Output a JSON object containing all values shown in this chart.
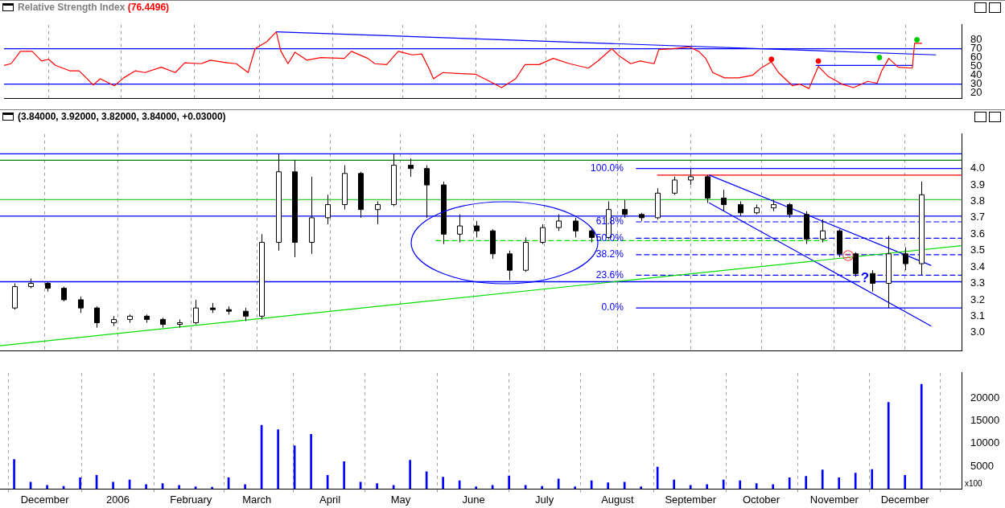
{
  "chart_data": [
    {
      "type": "line",
      "title": "Relative Strength Index",
      "subtitle": "(76.4496)",
      "xlim": [
        "2005-11-12",
        "2006-12-25"
      ],
      "xticks": [
        {
          "value": "2005-12-01",
          "label": null
        },
        {
          "value": "2006",
          "label": null
        },
        {
          "value": "2006-02-01",
          "label": null
        },
        {
          "value": "2006-03-01",
          "label": null
        },
        {
          "value": "2006-04-01",
          "label": null
        },
        {
          "value": "2006-05-01",
          "label": null
        },
        {
          "value": "2006-06-01",
          "label": null
        },
        {
          "value": "2006-07-01",
          "label": null
        },
        {
          "value": "2006-08-01",
          "label": null
        },
        {
          "value": "2006-09-01",
          "label": null
        },
        {
          "value": "2006-10-01",
          "label": null
        },
        {
          "value": "2006-11-01",
          "label": null
        },
        {
          "value": "2006-12-01",
          "label": null
        }
      ],
      "ylim": [
        14,
        97
      ],
      "yticks": [
        20,
        30,
        40,
        50,
        60,
        70,
        80
      ],
      "tick_labels": "y",
      "grid": "x",
      "ref_lines": [
        {
          "axis": "y",
          "value": 70,
          "color": "#0000ff"
        },
        {
          "axis": "y",
          "value": 30,
          "color": "#0000ff"
        }
      ],
      "series": [
        {
          "color": "#ff0000",
          "x": [
            "2005-11-12",
            "2005-11-15",
            "2005-11-19",
            "2005-11-24",
            "2005-11-28",
            "2005-12-01",
            "2005-12-04",
            "2005-12-10",
            "2005-12-14",
            "2005-12-20",
            "2005-12-23",
            "2005-12-29",
            "2006-01-02",
            "2006-01-07",
            "2006-01-11",
            "2006-01-18",
            "2006-01-24",
            "2006-01-28",
            "2006-02-04",
            "2006-02-08",
            "2006-02-15",
            "2006-02-19",
            "2006-02-24",
            "2006-02-27",
            "2006-03-04",
            "2006-03-08",
            "2006-03-10",
            "2006-03-13",
            "2006-03-16",
            "2006-03-21",
            "2006-03-27",
            "2006-04-06",
            "2006-04-09",
            "2006-04-16",
            "2006-04-19",
            "2006-04-24",
            "2006-04-29",
            "2006-05-05",
            "2006-05-09",
            "2006-05-12",
            "2006-05-14",
            "2006-05-18",
            "2006-05-24",
            "2006-06-01",
            "2006-06-07",
            "2006-06-12",
            "2006-06-18",
            "2006-06-22",
            "2006-06-28",
            "2006-07-04",
            "2006-07-11",
            "2006-07-19",
            "2006-07-23",
            "2006-07-29",
            "2006-08-01",
            "2006-08-06",
            "2006-08-10",
            "2006-08-16",
            "2006-08-18",
            "2006-08-24",
            "2006-08-31",
            "2006-09-04",
            "2006-09-07",
            "2006-09-10",
            "2006-09-15",
            "2006-09-21",
            "2006-09-27",
            "2006-10-01",
            "2006-10-05",
            "2006-10-08",
            "2006-10-14",
            "2006-10-17",
            "2006-10-21",
            "2006-10-25",
            "2006-10-29",
            "2006-11-04",
            "2006-11-09",
            "2006-11-15",
            "2006-11-19",
            "2006-11-21",
            "2006-11-24",
            "2006-11-28",
            "2006-12-04",
            "2006-12-05",
            "2006-12-08"
          ],
          "values": [
            51,
            53,
            67,
            67,
            56,
            58,
            51,
            45,
            45,
            29,
            36,
            28,
            37,
            45,
            43,
            49,
            43,
            54,
            53,
            57,
            54,
            53,
            43,
            70,
            78,
            89,
            67,
            53,
            66,
            57,
            60,
            59,
            67,
            59,
            53,
            52,
            67,
            63,
            64,
            48,
            36,
            43,
            42,
            41,
            33,
            26,
            36,
            52,
            52,
            59,
            53,
            48,
            56,
            70,
            62,
            53,
            56,
            53,
            69,
            70,
            72,
            67,
            59,
            43,
            37,
            37,
            40,
            49,
            55,
            43,
            28,
            30,
            25,
            50,
            39,
            30,
            26,
            33,
            31,
            45,
            59,
            49,
            48,
            76,
            76
          ]
        },
        {
          "type": "line",
          "color": "#0000ff",
          "x": [
            "2006-03-08",
            "2006-12-14"
          ],
          "values": [
            89,
            63
          ]
        },
        {
          "type": "line",
          "color": "#0000ff",
          "x": [
            "2006-10-24",
            "2006-12-04"
          ],
          "values": [
            51,
            51
          ]
        },
        {
          "type": "scatter",
          "marker": "circle",
          "color": "#ff0000",
          "x": [
            "2006-10-05",
            "2006-10-25"
          ],
          "values": [
            58,
            56
          ]
        },
        {
          "type": "scatter",
          "marker": "circle",
          "color": "#00cc00",
          "x": [
            "2006-11-20",
            "2006-12-06"
          ],
          "values": [
            60,
            80
          ]
        }
      ]
    },
    {
      "type": "candlestick",
      "title": "(3.84000, 3.92000, 3.82000, 3.84000, +0.03000)",
      "xlim": [
        "2005-11-12",
        "2006-12-25"
      ],
      "xticks": [
        {
          "value": "2005-12-01",
          "label": null
        },
        {
          "value": "2006",
          "label": null
        },
        {
          "value": "2006-02-01",
          "label": null
        },
        {
          "value": "2006-03-01",
          "label": null
        },
        {
          "value": "2006-04-01",
          "label": null
        },
        {
          "value": "2006-05-01",
          "label": null
        },
        {
          "value": "2006-06-01",
          "label": null
        },
        {
          "value": "2006-07-01",
          "label": null
        },
        {
          "value": "2006-08-01",
          "label": null
        },
        {
          "value": "2006-09-01",
          "label": null
        },
        {
          "value": "2006-10-01",
          "label": null
        },
        {
          "value": "2006-11-01",
          "label": null
        },
        {
          "value": "2006-12-01",
          "label": null
        }
      ],
      "ylim": [
        2.89,
        4.21
      ],
      "yticks": [
        {
          "value": 3,
          "label": "3.0"
        },
        3.1,
        3.2,
        3.3,
        3.4,
        3.5,
        3.6,
        3.7,
        3.8,
        3.9,
        {
          "value": 4,
          "label": "4.0"
        }
      ],
      "tick_labels": "y",
      "grid": "x",
      "marker": "none",
      "x": [
        "2005-11-18",
        "2005-11-25",
        "2005-12-02",
        "2005-12-09",
        "2005-12-16",
        "2005-12-23",
        "2005-12-30",
        "2006-01-06",
        "2006-01-13",
        "2006-01-20",
        "2006-01-27",
        "2006-02-03",
        "2006-02-10",
        "2006-02-17",
        "2006-02-24",
        "2006-03-03",
        "2006-03-10",
        "2006-03-17",
        "2006-03-24",
        "2006-03-31",
        "2006-04-07",
        "2006-04-14",
        "2006-04-21",
        "2006-04-28",
        "2006-05-05",
        "2006-05-12",
        "2006-05-19",
        "2006-05-26",
        "2006-06-02",
        "2006-06-09",
        "2006-06-16",
        "2006-06-23",
        "2006-06-30",
        "2006-07-07",
        "2006-07-14",
        "2006-07-21",
        "2006-07-28",
        "2006-08-04",
        "2006-08-11",
        "2006-08-18",
        "2006-08-25",
        "2006-09-01",
        "2006-09-08",
        "2006-09-15",
        "2006-09-22",
        "2006-09-29",
        "2006-10-06",
        "2006-10-13",
        "2006-10-20",
        "2006-10-27",
        "2006-11-03",
        "2006-11-10",
        "2006-11-17",
        "2006-11-24",
        "2006-12-01",
        "2006-12-08"
      ],
      "ohlc": [
        [
          3.15,
          3.3,
          3.14,
          3.28
        ],
        [
          3.28,
          3.33,
          3.27,
          3.3
        ],
        [
          3.3,
          3.31,
          3.25,
          3.27
        ],
        [
          3.27,
          3.28,
          3.19,
          3.2
        ],
        [
          3.2,
          3.22,
          3.12,
          3.15
        ],
        [
          3.15,
          3.16,
          3.03,
          3.06
        ],
        [
          3.06,
          3.1,
          3.04,
          3.08
        ],
        [
          3.08,
          3.11,
          3.06,
          3.1
        ],
        [
          3.1,
          3.11,
          3.06,
          3.08
        ],
        [
          3.08,
          3.09,
          3.03,
          3.05
        ],
        [
          3.05,
          3.08,
          3.03,
          3.06
        ],
        [
          3.06,
          3.2,
          3.05,
          3.15
        ],
        [
          3.15,
          3.18,
          3.12,
          3.14
        ],
        [
          3.14,
          3.16,
          3.11,
          3.13
        ],
        [
          3.13,
          3.15,
          3.07,
          3.1
        ],
        [
          3.1,
          3.6,
          3.08,
          3.55
        ],
        [
          3.55,
          4.09,
          3.5,
          3.98
        ],
        [
          3.98,
          4.05,
          3.46,
          3.55
        ],
        [
          3.55,
          3.95,
          3.48,
          3.7
        ],
        [
          3.7,
          3.84,
          3.66,
          3.78
        ],
        [
          3.78,
          4.02,
          3.75,
          3.97
        ],
        [
          3.97,
          3.98,
          3.7,
          3.75
        ],
        [
          3.75,
          3.8,
          3.66,
          3.78
        ],
        [
          3.78,
          4.09,
          3.77,
          4.02
        ],
        [
          4.02,
          4.06,
          3.95,
          4.0
        ],
        [
          4.0,
          4.02,
          3.7,
          3.9
        ],
        [
          3.9,
          3.92,
          3.54,
          3.6
        ],
        [
          3.6,
          3.72,
          3.55,
          3.65
        ],
        [
          3.65,
          3.68,
          3.58,
          3.62
        ],
        [
          3.62,
          3.63,
          3.45,
          3.48
        ],
        [
          3.48,
          3.5,
          3.32,
          3.38
        ],
        [
          3.38,
          3.58,
          3.37,
          3.55
        ],
        [
          3.55,
          3.66,
          3.54,
          3.64
        ],
        [
          3.64,
          3.72,
          3.62,
          3.68
        ],
        [
          3.68,
          3.7,
          3.58,
          3.62
        ],
        [
          3.62,
          3.63,
          3.55,
          3.58
        ],
        [
          3.58,
          3.8,
          3.57,
          3.75
        ],
        [
          3.75,
          3.81,
          3.7,
          3.72
        ],
        [
          3.72,
          3.73,
          3.68,
          3.7
        ],
        [
          3.7,
          3.88,
          3.69,
          3.85
        ],
        [
          3.85,
          3.95,
          3.84,
          3.93
        ],
        [
          3.93,
          4.0,
          3.9,
          3.95
        ],
        [
          3.95,
          3.96,
          3.79,
          3.82
        ],
        [
          3.82,
          3.87,
          3.74,
          3.78
        ],
        [
          3.78,
          3.8,
          3.71,
          3.73
        ],
        [
          3.73,
          3.78,
          3.72,
          3.76
        ],
        [
          3.76,
          3.81,
          3.74,
          3.78
        ],
        [
          3.78,
          3.79,
          3.7,
          3.72
        ],
        [
          3.72,
          3.74,
          3.54,
          3.57
        ],
        [
          3.57,
          3.69,
          3.55,
          3.62
        ],
        [
          3.62,
          3.63,
          3.46,
          3.48
        ],
        [
          3.48,
          3.49,
          3.34,
          3.36
        ],
        [
          3.36,
          3.38,
          3.25,
          3.3
        ],
        [
          3.3,
          3.59,
          3.15,
          3.48
        ],
        [
          3.48,
          3.52,
          3.38,
          3.42
        ],
        [
          3.42,
          3.92,
          3.35,
          3.84
        ]
      ],
      "ref_lines": [
        {
          "axis": "y",
          "value": 4.09,
          "color": "#0000ff"
        },
        {
          "axis": "y",
          "value": 4.05,
          "color": "#008000"
        },
        {
          "axis": "y",
          "value": 3.81,
          "color": "#33cc33"
        },
        {
          "axis": "y",
          "value": 3.71,
          "color": "#0000ff"
        },
        {
          "axis": "y",
          "value": 3.31,
          "color": "#0000ff"
        }
      ],
      "series": [
        {
          "type": "line",
          "color": "#00dd00",
          "x": [
            "2005-11-12",
            "2006-12-25"
          ],
          "values": [
            2.92,
            3.53
          ]
        },
        {
          "type": "line",
          "color": "#0000ff",
          "x": [
            "2006-09-09",
            "2006-12-12"
          ],
          "values": [
            3.96,
            3.41
          ]
        },
        {
          "type": "line",
          "color": "#0000ff",
          "x": [
            "2006-09-09",
            "2006-12-12"
          ],
          "values": [
            3.79,
            3.04
          ]
        },
        {
          "type": "line",
          "color": "#00dd00",
          "line_style": "dashed",
          "x": [
            "2006-05-16",
            "2006-10-29"
          ],
          "values": [
            3.56,
            3.56
          ]
        },
        {
          "type": "line",
          "color": "#ff0000",
          "x": [
            "2006-08-18",
            "2006-12-25"
          ],
          "values": [
            3.96,
            3.96
          ]
        },
        {
          "type": "line",
          "name": "100.0%",
          "color": "#0000ff",
          "x": [
            "2006-08-09",
            "2006-12-25"
          ],
          "values": [
            4.0,
            4.0
          ]
        },
        {
          "type": "line",
          "name": "61.8%",
          "color": "#0000ff",
          "line_style": "dashed",
          "x": [
            "2006-08-09",
            "2006-12-25"
          ],
          "values": [
            3.675,
            3.675
          ]
        },
        {
          "type": "line",
          "name": "50.0%",
          "color": "#0000ff",
          "line_style": "dashed",
          "x": [
            "2006-08-09",
            "2006-12-25"
          ],
          "values": [
            3.575,
            3.575
          ]
        },
        {
          "type": "line",
          "name": "38.2%",
          "color": "#0000ff",
          "line_style": "dashed",
          "x": [
            "2006-08-09",
            "2006-12-25"
          ],
          "values": [
            3.475,
            3.475
          ]
        },
        {
          "type": "line",
          "name": "23.6%",
          "color": "#0000ff",
          "line_style": "dashed",
          "x": [
            "2006-08-09",
            "2006-12-25"
          ],
          "values": [
            3.35,
            3.35
          ]
        },
        {
          "type": "line",
          "name": "0.0%",
          "color": "#0000ff",
          "x": [
            "2006-08-09",
            "2006-12-25"
          ],
          "values": [
            3.15,
            3.15
          ]
        }
      ],
      "annotations": [
        {
          "text": "?",
          "x": "2006-11-14",
          "y": 3.33
        }
      ]
    },
    {
      "type": "bar",
      "color": "#0000ff",
      "xlim": [
        "2005-11-12",
        "2006-12-25"
      ],
      "xticks": [
        {
          "value": "2005-12-01",
          "label": "December"
        },
        {
          "value": "2006",
          "label": "2006"
        },
        {
          "value": "2006-02-01",
          "label": "February"
        },
        {
          "value": "2006-03-01",
          "label": "March"
        },
        {
          "value": "2006-04-01",
          "label": "April"
        },
        {
          "value": "2006-05-01",
          "label": "May"
        },
        {
          "value": "2006-06-01",
          "label": "June"
        },
        {
          "value": "2006-07-01",
          "label": "July"
        },
        {
          "value": "2006-08-01",
          "label": "August"
        },
        {
          "value": "2006-09-01",
          "label": "September"
        },
        {
          "value": "2006-10-01",
          "label": "October"
        },
        {
          "value": "2006-11-01",
          "label": "November"
        },
        {
          "value": "2006-12-01",
          "label": "December"
        }
      ],
      "ylim": [
        0,
        25500
      ],
      "yticks": [
        5000,
        10000,
        15000,
        20000
      ],
      "grid": "x",
      "x": [
        "2005-11-18",
        "2005-11-25",
        "2005-12-02",
        "2005-12-09",
        "2005-12-16",
        "2005-12-23",
        "2005-12-30",
        "2006-01-06",
        "2006-01-13",
        "2006-01-20",
        "2006-01-27",
        "2006-02-03",
        "2006-02-10",
        "2006-02-17",
        "2006-02-24",
        "2006-03-03",
        "2006-03-10",
        "2006-03-17",
        "2006-03-24",
        "2006-03-31",
        "2006-04-07",
        "2006-04-14",
        "2006-04-21",
        "2006-04-28",
        "2006-05-05",
        "2006-05-12",
        "2006-05-19",
        "2006-05-26",
        "2006-06-02",
        "2006-06-09",
        "2006-06-16",
        "2006-06-23",
        "2006-06-30",
        "2006-07-07",
        "2006-07-14",
        "2006-07-21",
        "2006-07-28",
        "2006-08-04",
        "2006-08-11",
        "2006-08-18",
        "2006-08-25",
        "2006-09-01",
        "2006-09-08",
        "2006-09-15",
        "2006-09-22",
        "2006-09-29",
        "2006-10-06",
        "2006-10-13",
        "2006-10-20",
        "2006-10-27",
        "2006-11-03",
        "2006-11-10",
        "2006-11-17",
        "2006-11-24",
        "2006-12-01",
        "2006-12-08"
      ],
      "values": [
        6500,
        1500,
        800,
        600,
        2500,
        3000,
        1500,
        2000,
        1000,
        1200,
        800,
        500,
        400,
        2500,
        1000,
        14000,
        13000,
        9500,
        12000,
        3000,
        6000,
        1500,
        1200,
        800,
        6300,
        3800,
        2600,
        1800,
        500,
        800,
        2900,
        800,
        600,
        2200,
        500,
        1800,
        1400,
        1500,
        500,
        4800,
        2000,
        800,
        1000,
        2000,
        1800,
        1200,
        1000,
        2500,
        2800,
        4200,
        2500,
        3500,
        4300,
        19000,
        3000,
        23000
      ],
      "annotations": [
        "x100"
      ]
    }
  ]
}
